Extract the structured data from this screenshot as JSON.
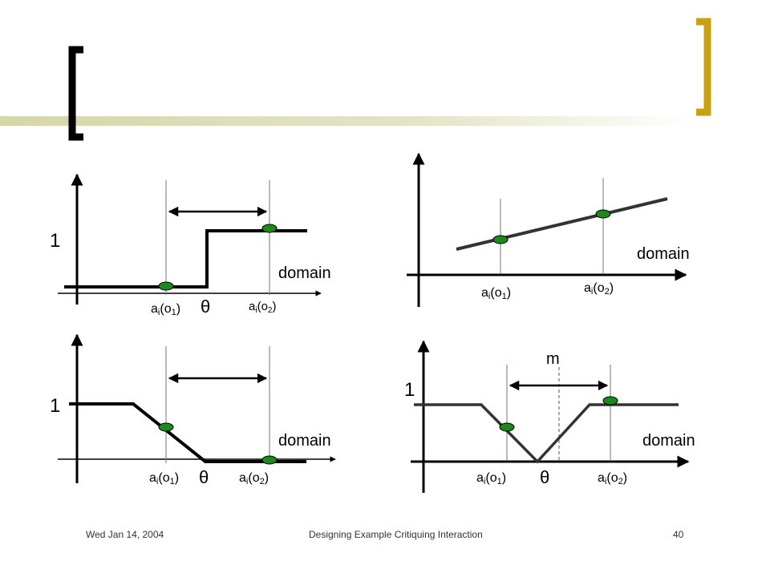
{
  "footer": {
    "date": "Wed Jan 14, 2004",
    "title": "Designing Example Critiquing Interaction",
    "page": "40"
  },
  "labels": {
    "one": "1",
    "theta": "θ",
    "domain": "domain",
    "a": "a",
    "i": "i",
    "o1_open": "(o",
    "sub1": "1",
    "sub2": "2",
    "close": ")",
    "m": "m"
  },
  "colors": {
    "title_bar": "#c8c896",
    "bracket_right": "#c8a010",
    "dot_fill": "#1a8a1a",
    "line": "#000000",
    "guide": "#777777"
  },
  "icons": {
    "left_bracket": "left-bracket-decoration",
    "right_bracket": "right-bracket-decoration",
    "dot": "green-ellipse-marker"
  }
}
